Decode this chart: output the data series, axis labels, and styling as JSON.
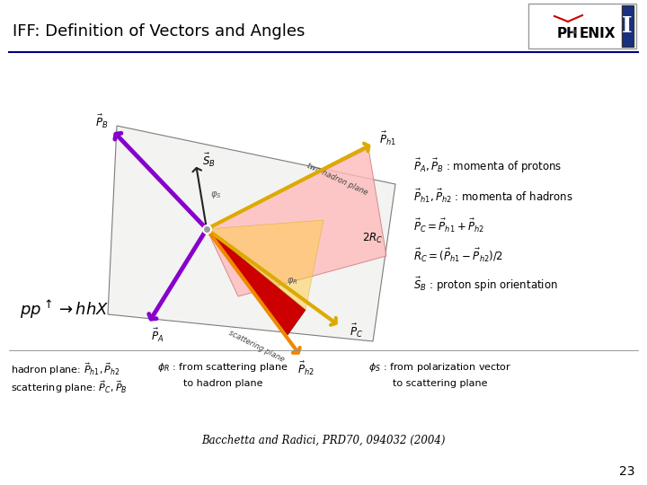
{
  "title": "IFF: Definition of Vectors and Angles",
  "bg_color": "#ffffff",
  "title_color": "#000000",
  "title_fontsize": 13,
  "slide_number": "23",
  "citation": "Bacchetta and Radici, PRD70, 094032 (2004)",
  "eq_line1": "$\\vec{P}_A, \\vec{P}_B$ : momenta of protons",
  "eq_line2": "$\\vec{P}_{h1}, \\vec{P}_{h2}$ : momenta of hadrons",
  "eq_line3": "$\\vec{P}_C = \\vec{P}_{h1} + \\vec{P}_{h2}$",
  "eq_line4": "$\\vec{R}_C = (\\vec{P}_{h1} - \\vec{P}_{h2})/2$",
  "eq_line5": "$\\vec{S}_B$ : proton spin orientation",
  "header_line_color": "#000080",
  "arrow_purple_color": "#8800cc",
  "arrow_yellow_color": "#ddaa00",
  "arrow_orange_color": "#ee8800",
  "plane_pink_color": "#ffbbbb",
  "plane_white_color": "#f0f0ee",
  "red_triangle_color": "#cc0000"
}
